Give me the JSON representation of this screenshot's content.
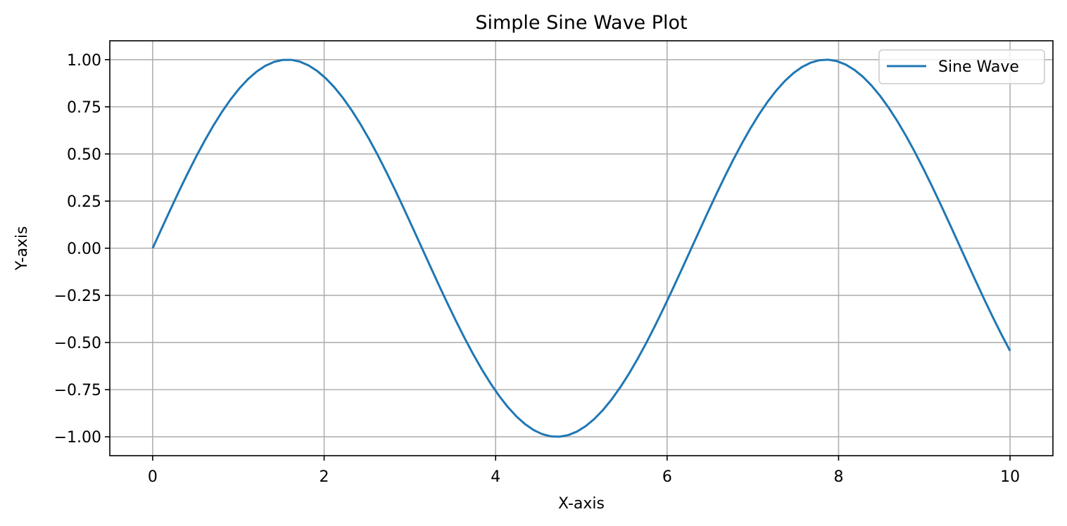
{
  "chart_data": {
    "type": "line",
    "title": "Simple Sine Wave Plot",
    "xlabel": "X-axis",
    "ylabel": "Y-axis",
    "xlim": [
      -0.5,
      10.5
    ],
    "ylim": [
      -1.1,
      1.1
    ],
    "xticks": [
      0,
      2,
      4,
      6,
      8,
      10
    ],
    "xtick_labels": [
      "0",
      "2",
      "4",
      "6",
      "8",
      "10"
    ],
    "yticks": [
      1.0,
      0.75,
      0.5,
      0.25,
      0.0,
      -0.25,
      -0.5,
      -0.75,
      -1.0
    ],
    "ytick_labels": [
      "1.00",
      "0.75",
      "0.50",
      "0.25",
      "0.00",
      "−0.25",
      "−0.50",
      "−0.75",
      "−1.00"
    ],
    "grid": true,
    "legend_position": "top-right",
    "series": [
      {
        "name": "Sine Wave",
        "color": "#1f77b4",
        "function": "sin(x)",
        "x_range": [
          0,
          10
        ],
        "num_points": 100
      }
    ]
  }
}
